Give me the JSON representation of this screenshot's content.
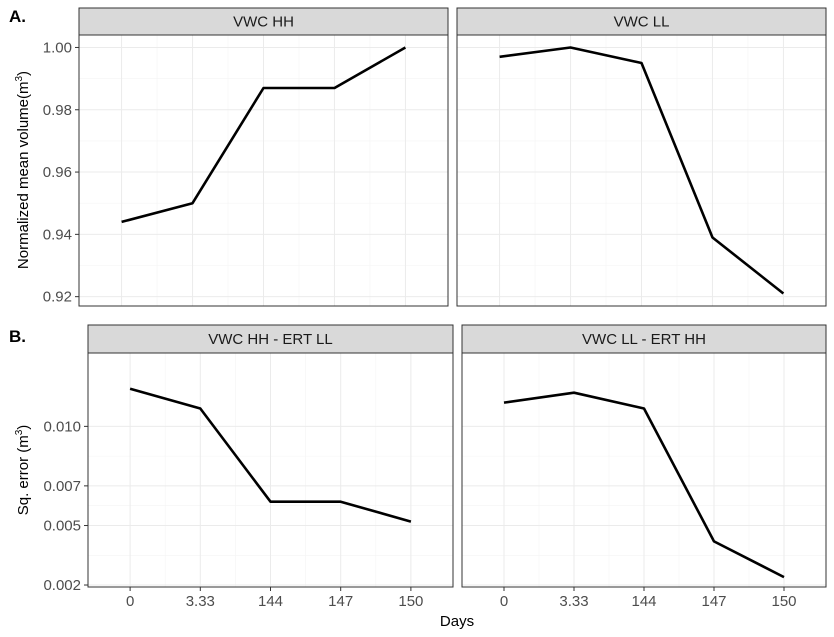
{
  "panel_labels": {
    "top": "A.",
    "bottom": "B."
  },
  "chart_data": [
    {
      "type": "line",
      "row": "A",
      "facet_title": "VWC HH",
      "categories": [
        "0",
        "3.33",
        "144",
        "147",
        "150"
      ],
      "values": [
        0.944,
        0.95,
        0.987,
        0.987,
        1.0
      ],
      "ylim": [
        0.917,
        1.004
      ],
      "yticks": [
        0.92,
        0.94,
        0.96,
        0.98,
        1.0
      ],
      "ytick_labels": [
        "0.92",
        "0.94",
        "0.96",
        "0.98",
        "1.00"
      ],
      "grid": true
    },
    {
      "type": "line",
      "row": "A",
      "facet_title": "VWC LL",
      "categories": [
        "0",
        "3.33",
        "144",
        "147",
        "150"
      ],
      "values": [
        0.997,
        1.0,
        0.995,
        0.939,
        0.921
      ],
      "ylim": [
        0.917,
        1.004
      ],
      "grid": true
    },
    {
      "type": "line",
      "row": "B",
      "facet_title": "VWC HH - ERT LL",
      "categories": [
        "0",
        "3.33",
        "144",
        "147",
        "150"
      ],
      "values": [
        0.0119,
        0.0109,
        0.0062,
        0.0062,
        0.0052
      ],
      "ylim": [
        0.0019,
        0.0137
      ],
      "yticks": [
        0.002,
        0.005,
        0.007,
        0.01
      ],
      "ytick_labels": [
        "0.002",
        "0.005",
        "0.007",
        "0.010"
      ],
      "grid": true
    },
    {
      "type": "line",
      "row": "B",
      "facet_title": "VWC LL - ERT HH",
      "categories": [
        "0",
        "3.33",
        "144",
        "147",
        "150"
      ],
      "values": [
        0.0112,
        0.0117,
        0.0109,
        0.0042,
        0.0024
      ],
      "ylim": [
        0.0019,
        0.0137
      ],
      "grid": true
    }
  ],
  "axes": {
    "xlabel": "Days",
    "ylabel_top": "Normalized mean volume(m",
    "ylabel_bottom": "Sq. error (m",
    "ylabel_superscript": "3",
    "ylabel_close": ")"
  }
}
